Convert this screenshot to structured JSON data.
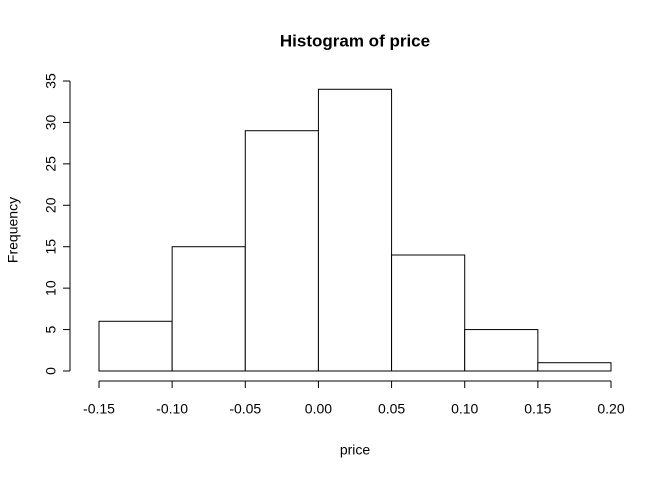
{
  "chart_data": {
    "type": "histogram",
    "title": "Histogram of price",
    "x_label": "price",
    "y_label": "Frequency",
    "bins": [
      -0.15,
      -0.1,
      -0.05,
      0,
      0.05,
      0.1,
      0.15,
      0.2
    ],
    "values": [
      6,
      15,
      29,
      34,
      14,
      5,
      1
    ],
    "color": "#ffffff",
    "xlim": [
      -0.15,
      0.2
    ],
    "xticks": [
      -0.15,
      {
        "value": -0.1,
        "label": "-0.10"
      },
      -0.05,
      {
        "value": 0,
        "label": "0.00"
      },
      0.05,
      {
        "value": 0.1,
        "label": "0.10"
      },
      0.15,
      {
        "value": 0.2,
        "label": "0.20"
      }
    ],
    "ylim": [
      0,
      35
    ],
    "yticks": [
      0,
      5,
      10,
      15,
      20,
      25,
      30,
      35
    ]
  }
}
